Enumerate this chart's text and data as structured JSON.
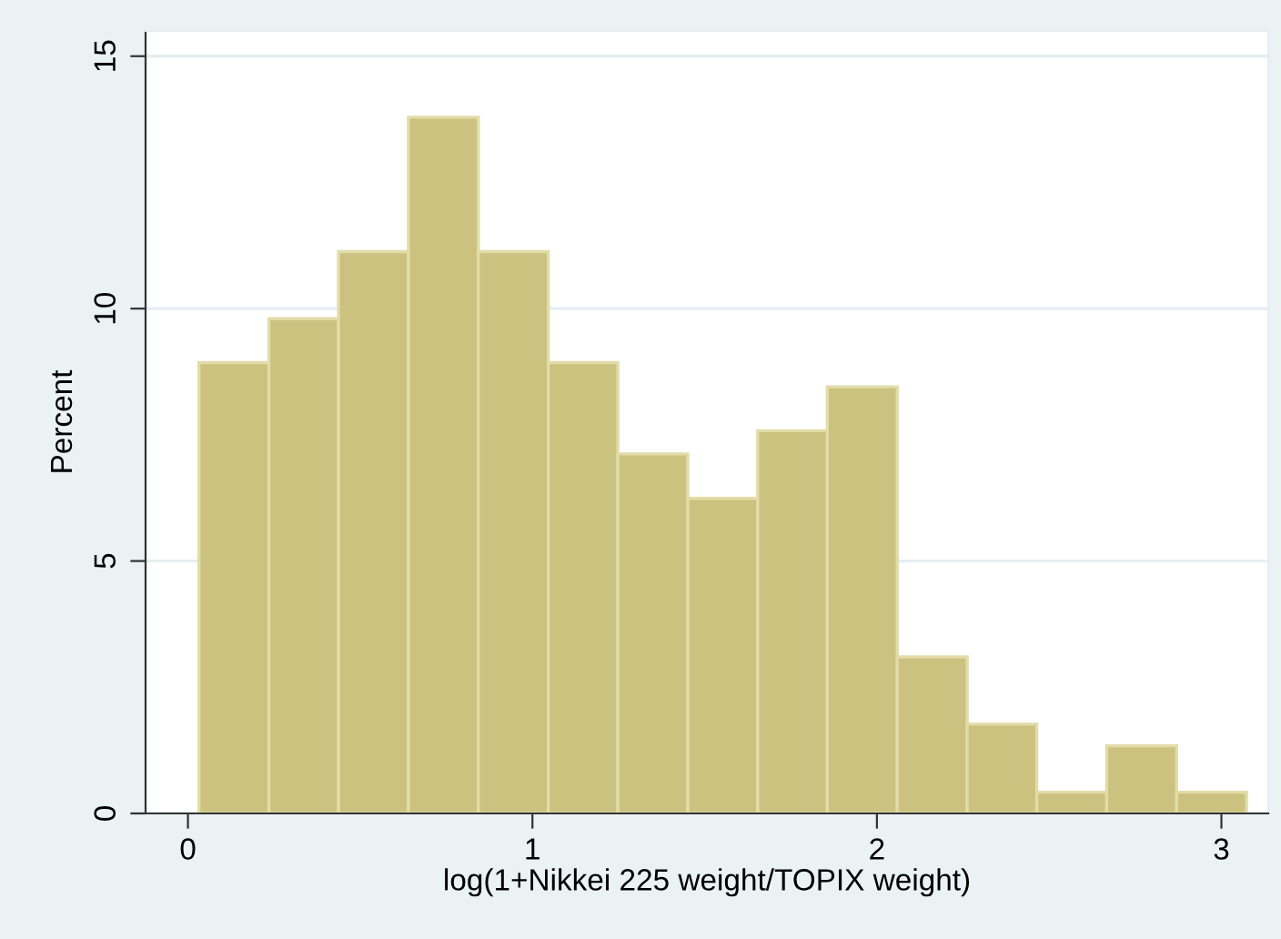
{
  "chart_data": {
    "type": "histogram",
    "xlabel": "log(1+Nikkei 225 weight/TOPIX weight)",
    "ylabel": "Percent",
    "bins": [
      0.032,
      0.235,
      0.437,
      0.64,
      0.843,
      1.046,
      1.248,
      1.451,
      1.654,
      1.856,
      2.059,
      2.262,
      2.464,
      2.667,
      2.87,
      3.073
    ],
    "values": [
      8.93,
      9.8,
      11.13,
      13.79,
      11.13,
      8.93,
      7.12,
      6.24,
      7.58,
      8.45,
      3.1,
      1.77,
      0.42,
      1.34,
      0.42
    ],
    "color": "#cbc280",
    "xlim": [
      -0.123,
      3.136
    ],
    "ylim": [
      0,
      15.5
    ],
    "xticks": [
      0,
      1,
      2,
      3
    ],
    "yticks": [
      0,
      5,
      10,
      15
    ],
    "grid": "y"
  }
}
